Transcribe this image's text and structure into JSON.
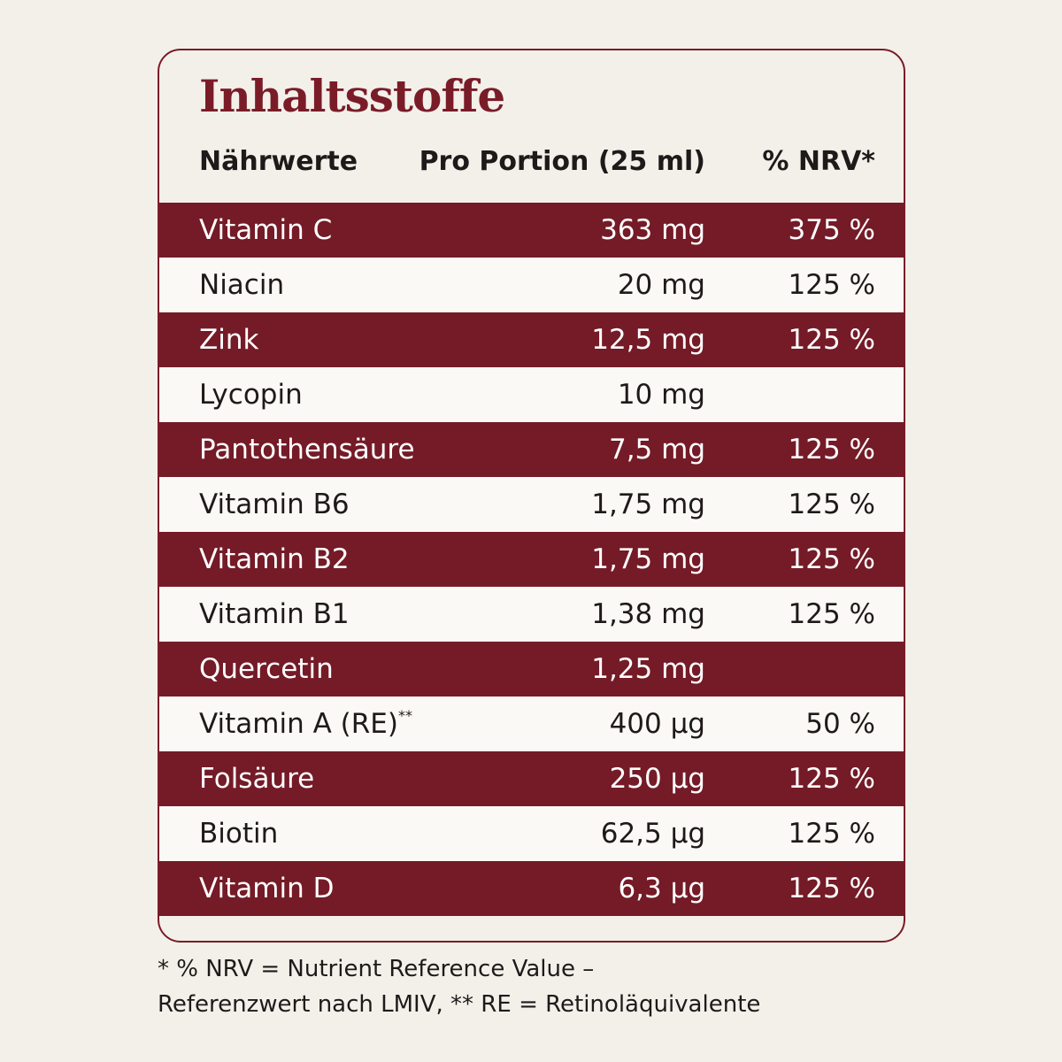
{
  "title": "Inhaltsstoffe",
  "headers": {
    "name": "Nährwerte",
    "amount": "Pro Portion (25 ml)",
    "nrv": "% NRV*"
  },
  "rows": [
    {
      "name": "Vitamin C",
      "sup": "",
      "amount": "363 mg",
      "nrv": "375 %"
    },
    {
      "name": "Niacin",
      "sup": "",
      "amount": "20 mg",
      "nrv": "125 %"
    },
    {
      "name": "Zink",
      "sup": "",
      "amount": "12,5 mg",
      "nrv": "125 %"
    },
    {
      "name": "Lycopin",
      "sup": "",
      "amount": "10 mg",
      "nrv": ""
    },
    {
      "name": "Pantothensäure",
      "sup": "",
      "amount": "7,5 mg",
      "nrv": "125 %"
    },
    {
      "name": "Vitamin B6",
      "sup": "",
      "amount": "1,75 mg",
      "nrv": "125 %"
    },
    {
      "name": "Vitamin B2",
      "sup": "",
      "amount": "1,75 mg",
      "nrv": "125 %"
    },
    {
      "name": "Vitamin B1",
      "sup": "",
      "amount": "1,38 mg",
      "nrv": "125 %"
    },
    {
      "name": "Quercetin",
      "sup": "",
      "amount": "1,25 mg",
      "nrv": ""
    },
    {
      "name": "Vitamin A (RE)",
      "sup": "**",
      "amount": "400 µg",
      "nrv": "50 %"
    },
    {
      "name": "Folsäure",
      "sup": "",
      "amount": "250 µg",
      "nrv": "125 %"
    },
    {
      "name": "Biotin",
      "sup": "",
      "amount": "62,5 µg",
      "nrv": "125 %"
    },
    {
      "name": "Vitamin D",
      "sup": "",
      "amount": "6,3 µg",
      "nrv": "125 %"
    }
  ],
  "footnote": {
    "line1": "* % NRV = Nutrient Reference Value –",
    "line2": "Referenzwert nach LMIV, ** RE = Retinoläquivalente"
  },
  "colors": {
    "accent": "#741b27",
    "background": "#f3f0ea",
    "row_light": "#fbf9f5"
  }
}
